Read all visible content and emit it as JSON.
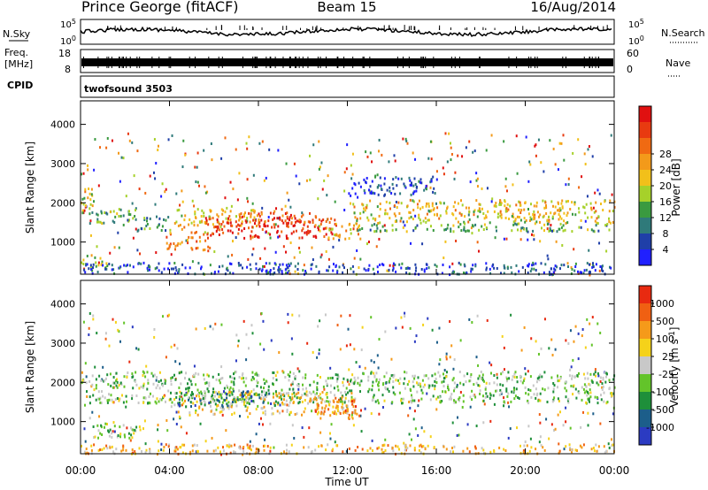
{
  "header": {
    "station": "Prince George (fitACF)",
    "beam": "Beam 15",
    "date": "16/Aug/2014"
  },
  "chart_data": [
    {
      "type": "line",
      "panel": "noise",
      "left_labels": [
        "N.Sky"
      ],
      "left_ticks": [
        "10^5",
        "10^0"
      ],
      "right_labels": [
        "N.Search"
      ],
      "right_ticks": [
        "10^5",
        "10^0"
      ],
      "xlim": [
        0,
        24
      ]
    },
    {
      "type": "line",
      "panel": "frequency",
      "left_labels": [
        "Freq.",
        "[MHz]"
      ],
      "left_ticks": [
        "18",
        "8"
      ],
      "right_labels": [
        "Nave"
      ],
      "right_ticks": [
        "60",
        "0"
      ],
      "xlim": [
        0,
        24
      ]
    },
    {
      "type": "table",
      "panel": "cpid",
      "label": "CPID",
      "value": "twofsound 3503"
    },
    {
      "type": "heatmap",
      "panel": "power",
      "ylabel": "Slant Range [km]",
      "ylim": [
        180,
        4600
      ],
      "yticks": [
        "1000",
        "2000",
        "3000",
        "4000"
      ],
      "xlim": [
        0,
        24
      ],
      "colorbar": {
        "label": "Power [dB]",
        "ticks": [
          "4",
          "8",
          "12",
          "16",
          "20",
          "24",
          "28"
        ],
        "colors": [
          "#2020ff",
          "#1f3fa8",
          "#2f7a7a",
          "#3a9a40",
          "#a6d12a",
          "#f2c01a",
          "#f39a1a",
          "#f06a12",
          "#e83a10",
          "#e01010"
        ]
      },
      "bands": [
        {
          "t0": 0.0,
          "t1": 0.6,
          "r0": 1600,
          "r1": 2400,
          "level": 0.45
        },
        {
          "t0": 0.0,
          "t1": 1.2,
          "r0": 300,
          "r1": 700,
          "level": 0.5
        },
        {
          "t0": 0.3,
          "t1": 2.5,
          "r0": 1500,
          "r1": 1900,
          "level": 0.35
        },
        {
          "t0": 2.5,
          "t1": 4.0,
          "r0": 1300,
          "r1": 1700,
          "level": 0.3
        },
        {
          "t0": 3.8,
          "t1": 5.8,
          "r0": 800,
          "r1": 1300,
          "level": 0.7
        },
        {
          "t0": 4.2,
          "t1": 8.0,
          "r0": 1400,
          "r1": 1900,
          "level": 0.55
        },
        {
          "t0": 5.5,
          "t1": 11.5,
          "r0": 1100,
          "r1": 1700,
          "level": 0.9
        },
        {
          "t0": 7.0,
          "t1": 10.5,
          "r0": 1500,
          "r1": 1800,
          "level": 0.8
        },
        {
          "t0": 10.5,
          "t1": 12.5,
          "r0": 1100,
          "r1": 1500,
          "level": 0.6
        },
        {
          "t0": 12.0,
          "t1": 24.0,
          "r0": 1500,
          "r1": 2100,
          "level": 0.55
        },
        {
          "t0": 12.0,
          "t1": 24.0,
          "r0": 1300,
          "r1": 1500,
          "level": 0.35
        },
        {
          "t0": 0.0,
          "t1": 24.0,
          "r0": 200,
          "r1": 500,
          "level": 0.15
        },
        {
          "t0": 12.0,
          "t1": 16.0,
          "r0": 2200,
          "r1": 2700,
          "level": 0.15
        }
      ]
    },
    {
      "type": "heatmap",
      "panel": "velocity",
      "ylabel": "Slant Range [km]",
      "ylim": [
        180,
        4600
      ],
      "yticks": [
        "1000",
        "2000",
        "3000",
        "4000"
      ],
      "xlabel": "Time UT",
      "xticks": [
        "00:00",
        "04:00",
        "08:00",
        "12:00",
        "16:00",
        "20:00",
        "00:00"
      ],
      "xlim": [
        0,
        24
      ],
      "colorbar": {
        "label": "Velocity [m s^-1]",
        "ticks": [
          "1000",
          "500",
          "100",
          "25",
          "-25",
          "-100",
          "-500",
          "-1000"
        ],
        "colors": [
          "#2b3bc2",
          "#1c5e8a",
          "#1e8f3a",
          "#63c42a",
          "#c8c8c8",
          "#f5d21a",
          "#f59a1a",
          "#f06012",
          "#e82a10"
        ]
      },
      "bands": [
        {
          "t0": 0.0,
          "t1": 24.0,
          "r0": 1500,
          "r1": 2300,
          "level": 0.4
        },
        {
          "t0": 4.0,
          "t1": 12.5,
          "r0": 1200,
          "r1": 1800,
          "level": 0.6
        },
        {
          "t0": 4.2,
          "t1": 9.0,
          "r0": 1400,
          "r1": 1800,
          "level": 0.2
        },
        {
          "t0": 10.5,
          "t1": 12.7,
          "r0": 1100,
          "r1": 1600,
          "level": 0.8
        },
        {
          "t0": 0.0,
          "t1": 24.0,
          "r0": 200,
          "r1": 450,
          "level": 0.65
        },
        {
          "t0": 0.5,
          "t1": 3.0,
          "r0": 600,
          "r1": 1000,
          "level": 0.45
        }
      ]
    }
  ]
}
